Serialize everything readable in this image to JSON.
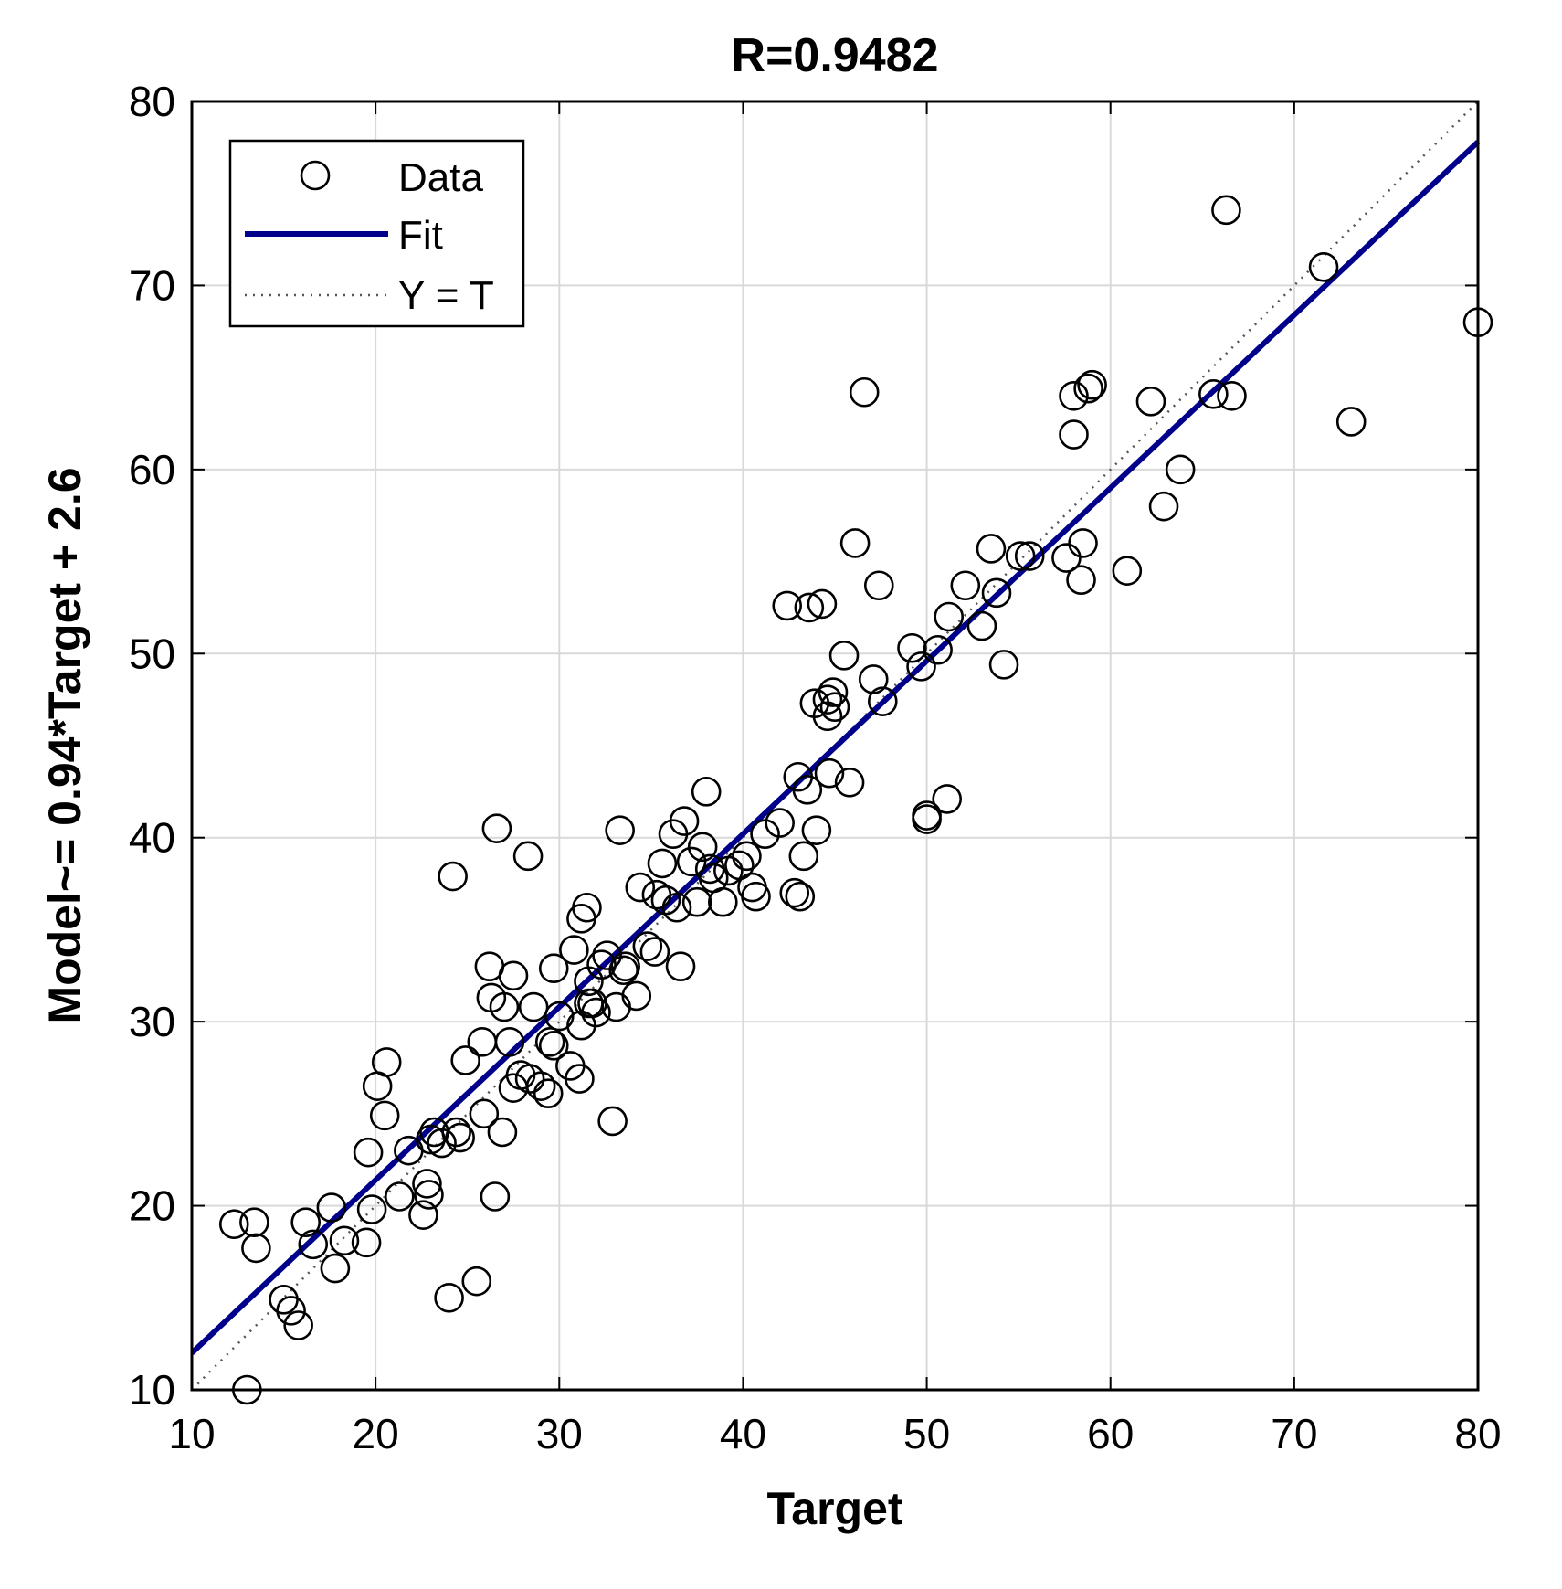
{
  "chart_data": {
    "type": "scatter",
    "title": "R=0.9482",
    "xlabel": "Target",
    "ylabel": "Model~= 0.94*Target + 2.6",
    "xlim": [
      10,
      80
    ],
    "ylim": [
      10,
      80
    ],
    "xticks": [
      10,
      20,
      30,
      40,
      50,
      60,
      70,
      80
    ],
    "yticks": [
      10,
      20,
      30,
      40,
      50,
      60,
      70,
      80
    ],
    "grid": true,
    "legend_position": "top-left",
    "legend": [
      {
        "label": "Data",
        "style": "circle-marker",
        "color": "#000000"
      },
      {
        "label": "Fit",
        "style": "solid-line",
        "color": "#00008b"
      },
      {
        "label": "Y = T",
        "style": "dotted-line",
        "color": "#000000"
      }
    ],
    "fit": {
      "slope": 0.94,
      "intercept": 2.6,
      "color": "#00008b"
    },
    "identity_line": {
      "color": "#555555"
    },
    "series": [
      {
        "name": "Data",
        "x": [
          13.0,
          12.3,
          13.4,
          13.5,
          15.0,
          15.4,
          15.8,
          16.2,
          16.6,
          17.6,
          17.8,
          18.3,
          19.5,
          19.8,
          20.1,
          19.6,
          20.6,
          20.5,
          21.3,
          21.8,
          22.6,
          22.8,
          22.9,
          23.0,
          23.2,
          23.6,
          24.0,
          24.2,
          24.4,
          24.6,
          24.9,
          25.5,
          25.8,
          25.9,
          26.2,
          26.3,
          26.5,
          26.6,
          26.9,
          27.0,
          27.3,
          27.5,
          27.5,
          27.9,
          28.3,
          28.4,
          28.6,
          29.0,
          29.4,
          29.5,
          29.7,
          29.7,
          30.0,
          30.6,
          30.8,
          31.1,
          31.2,
          31.2,
          31.5,
          31.6,
          31.6,
          31.8,
          32.0,
          32.3,
          32.6,
          32.9,
          33.1,
          33.3,
          33.5,
          33.6,
          34.2,
          34.4,
          34.8,
          35.2,
          35.3,
          35.6,
          35.8,
          36.2,
          36.4,
          36.6,
          36.8,
          37.2,
          37.5,
          37.8,
          38.0,
          38.2,
          38.4,
          38.9,
          39.2,
          39.8,
          40.2,
          40.5,
          40.7,
          41.2,
          42.0,
          42.4,
          42.8,
          43.0,
          43.1,
          43.3,
          43.5,
          43.6,
          43.9,
          44.0,
          44.3,
          44.6,
          44.6,
          44.7,
          44.9,
          45.0,
          45.5,
          45.8,
          46.1,
          46.6,
          47.1,
          47.4,
          47.6,
          49.2,
          49.7,
          50.0,
          50.6,
          50.0,
          51.1,
          51.2,
          52.1,
          53.0,
          53.5,
          53.8,
          54.2,
          55.1,
          55.6,
          57.6,
          58.0,
          58.0,
          58.4,
          58.5,
          58.8,
          59.0,
          60.9,
          62.2,
          62.9,
          63.8,
          65.6,
          66.3,
          66.6,
          71.6,
          73.1,
          80.0
        ],
        "y": [
          10.0,
          19.0,
          19.1,
          17.7,
          14.9,
          14.3,
          13.5,
          19.1,
          17.9,
          19.9,
          16.6,
          18.1,
          18.0,
          19.8,
          26.5,
          22.9,
          27.8,
          24.9,
          20.5,
          23.0,
          19.5,
          21.2,
          20.6,
          23.6,
          24.0,
          23.4,
          15.0,
          37.9,
          24.0,
          23.7,
          27.9,
          15.9,
          28.9,
          25.0,
          33.0,
          31.3,
          20.5,
          40.5,
          24.0,
          30.8,
          28.9,
          32.5,
          26.4,
          27.1,
          39.0,
          26.9,
          30.8,
          26.5,
          26.1,
          28.9,
          32.9,
          28.7,
          30.3,
          27.6,
          33.9,
          26.9,
          29.8,
          35.6,
          36.2,
          31.0,
          32.2,
          31.0,
          30.5,
          33.1,
          33.6,
          24.6,
          30.8,
          40.4,
          32.8,
          33.0,
          31.4,
          37.3,
          34.1,
          33.8,
          36.9,
          38.6,
          36.6,
          40.2,
          36.2,
          33.0,
          40.9,
          38.7,
          36.5,
          39.5,
          42.5,
          38.3,
          37.8,
          36.5,
          38.2,
          38.5,
          39.0,
          37.3,
          36.8,
          40.2,
          40.8,
          52.6,
          37.0,
          43.3,
          36.8,
          39.0,
          42.6,
          52.5,
          47.3,
          40.4,
          52.7,
          47.5,
          46.6,
          43.5,
          47.9,
          47.1,
          49.9,
          43.0,
          56.0,
          64.2,
          48.6,
          53.7,
          47.4,
          50.3,
          49.3,
          41.0,
          50.2,
          41.2,
          42.1,
          52.0,
          53.7,
          51.5,
          55.7,
          53.3,
          49.4,
          55.3,
          55.3,
          55.2,
          64.0,
          61.9,
          54.0,
          56.0,
          64.4,
          64.6,
          54.5,
          63.7,
          58.0,
          60.0,
          64.1,
          74.1,
          64.0,
          71.0,
          62.6,
          68.0
        ]
      }
    ]
  }
}
